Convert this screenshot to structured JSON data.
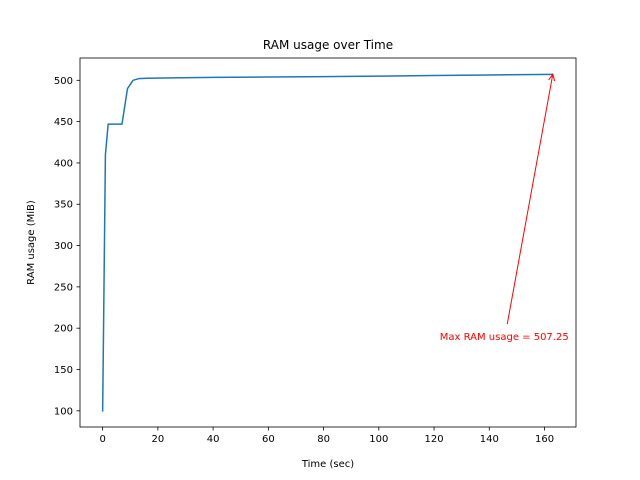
{
  "chart_data": {
    "type": "line",
    "title": "RAM usage over Time",
    "xlabel": "Time (sec)",
    "ylabel": "RAM usage (MiB)",
    "xlim": [
      -8.2,
      171.4
    ],
    "ylim": [
      80.4,
      527.0
    ],
    "xticks": [
      0,
      20,
      40,
      60,
      80,
      100,
      120,
      140,
      160
    ],
    "yticks": [
      100,
      150,
      200,
      250,
      300,
      350,
      400,
      450,
      500
    ],
    "grid": false,
    "line_color": "#1f77b4",
    "series": [
      {
        "x": [
          0,
          1,
          2,
          7,
          9,
          11,
          13,
          16,
          25,
          40,
          60,
          80,
          100,
          120,
          140,
          163
        ],
        "y": [
          99.0,
          410.0,
          447.0,
          447.0,
          490.0,
          500.0,
          502.0,
          502.5,
          503.0,
          503.5,
          504.0,
          504.5,
          505.0,
          505.8,
          506.5,
          507.25
        ]
      }
    ],
    "annotations": [
      {
        "text": "Max RAM usage = 507.25",
        "color": "#ff0000",
        "xy": [
          163,
          507.25
        ],
        "xytext": [
          146.5,
          205.0
        ]
      }
    ]
  }
}
